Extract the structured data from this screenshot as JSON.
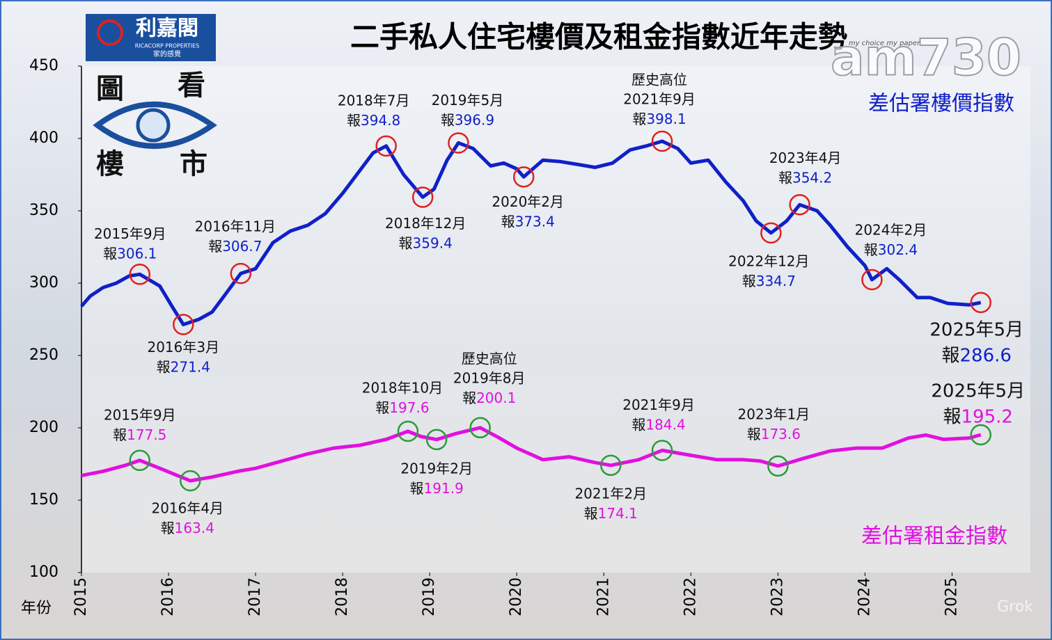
{
  "chart_data": {
    "type": "line",
    "title": "二手私人住宅樓價及租金指數近年走勢",
    "x_label": "年份",
    "xlim": [
      2015,
      2025.9
    ],
    "xticks": [
      2015,
      2016,
      2017,
      2018,
      2019,
      2020,
      2021,
      2022,
      2023,
      2024,
      2025
    ],
    "ylim": [
      100,
      450
    ],
    "yticks": [
      100,
      150,
      200,
      250,
      300,
      350,
      400,
      450
    ],
    "series": [
      {
        "name": "差估署樓價指數",
        "color": "#1020c8",
        "marker_color": "#e02020",
        "x": [
          2015.0,
          2015.1,
          2015.25,
          2015.4,
          2015.55,
          2015.67,
          2015.9,
          2016.05,
          2016.17,
          2016.35,
          2016.5,
          2016.65,
          2016.83,
          2017.0,
          2017.2,
          2017.4,
          2017.6,
          2017.8,
          2018.0,
          2018.2,
          2018.35,
          2018.5,
          2018.7,
          2018.92,
          2019.05,
          2019.2,
          2019.33,
          2019.5,
          2019.7,
          2019.85,
          2020.0,
          2020.08,
          2020.3,
          2020.5,
          2020.7,
          2020.9,
          2021.1,
          2021.3,
          2021.5,
          2021.67,
          2021.85,
          2022.0,
          2022.2,
          2022.4,
          2022.6,
          2022.75,
          2022.92,
          2023.1,
          2023.25,
          2023.45,
          2023.6,
          2023.8,
          2024.0,
          2024.08,
          2024.25,
          2024.4,
          2024.6,
          2024.75,
          2024.95,
          2025.2,
          2025.33
        ],
        "values": [
          284,
          291,
          297,
          300,
          305,
          306.1,
          298,
          283,
          271.4,
          275,
          280,
          292,
          306.7,
          310,
          328,
          336,
          340,
          348,
          362,
          378,
          390,
          394.8,
          375,
          359.4,
          365,
          385,
          396.9,
          393,
          381,
          383,
          379,
          373.4,
          385,
          384,
          382,
          380,
          383,
          392,
          395,
          398.1,
          393,
          383,
          385,
          370,
          357,
          343,
          334.7,
          343,
          354.2,
          350,
          340,
          325,
          312,
          302.4,
          310,
          302,
          290,
          290,
          286,
          285,
          286.6
        ],
        "annotations": [
          {
            "x": 2015.67,
            "date": "2015年9月",
            "prefix": "報",
            "value": 306.1
          },
          {
            "x": 2016.17,
            "date": "2016年3月",
            "prefix": "報",
            "value": 271.4
          },
          {
            "x": 2016.83,
            "date": "2016年11月",
            "prefix": "報",
            "value": 306.7
          },
          {
            "x": 2018.5,
            "date": "2018年7月",
            "prefix": "報",
            "value": 394.8
          },
          {
            "x": 2018.92,
            "date": "2018年12月",
            "prefix": "報",
            "value": 359.4
          },
          {
            "x": 2019.33,
            "date": "2019年5月",
            "prefix": "報",
            "value": 396.9
          },
          {
            "x": 2020.08,
            "date": "2020年2月",
            "prefix": "報",
            "value": 373.4
          },
          {
            "x": 2021.67,
            "note": "歷史高位",
            "date": "2021年9月",
            "prefix": "報",
            "value": 398.1
          },
          {
            "x": 2022.92,
            "date": "2022年12月",
            "prefix": "報",
            "value": 334.7
          },
          {
            "x": 2023.25,
            "date": "2023年4月",
            "prefix": "報",
            "value": 354.2
          },
          {
            "x": 2024.08,
            "date": "2024年2月",
            "prefix": "報",
            "value": 302.4
          },
          {
            "x": 2025.33,
            "date": "2025年5月",
            "prefix": "報",
            "value": 286.6
          }
        ]
      },
      {
        "name": "差估署租金指數",
        "color": "#e010e0",
        "marker_color": "#2a9a3a",
        "x": [
          2015.0,
          2015.25,
          2015.5,
          2015.67,
          2015.9,
          2016.25,
          2016.5,
          2016.8,
          2017.0,
          2017.3,
          2017.6,
          2017.9,
          2018.2,
          2018.5,
          2018.75,
          2018.9,
          2019.08,
          2019.3,
          2019.58,
          2019.8,
          2020.0,
          2020.3,
          2020.6,
          2020.9,
          2021.08,
          2021.4,
          2021.67,
          2022.0,
          2022.3,
          2022.6,
          2022.8,
          2023.0,
          2023.3,
          2023.6,
          2023.9,
          2024.2,
          2024.5,
          2024.7,
          2024.9,
          2025.2,
          2025.33
        ],
        "values": [
          167,
          170,
          174,
          177.5,
          172,
          163.4,
          166,
          170,
          172,
          177,
          182,
          186,
          188,
          192,
          197.6,
          194,
          191.9,
          196,
          200.1,
          193,
          186,
          178,
          180,
          176,
          174.1,
          178,
          184.4,
          181,
          178,
          178,
          177,
          173.6,
          179,
          184,
          186,
          186,
          193,
          195,
          192,
          193,
          195.2
        ],
        "annotations": [
          {
            "x": 2015.67,
            "date": "2015年9月",
            "prefix": "報",
            "value": 177.5
          },
          {
            "x": 2016.25,
            "date": "2016年4月",
            "prefix": "報",
            "value": 163.4
          },
          {
            "x": 2018.75,
            "date": "2018年10月",
            "prefix": "報",
            "value": 197.6
          },
          {
            "x": 2019.08,
            "date": "2019年2月",
            "prefix": "報",
            "value": 191.9
          },
          {
            "x": 2019.58,
            "note": "歷史高位",
            "date": "2019年8月",
            "prefix": "報",
            "value": 200.1
          },
          {
            "x": 2021.08,
            "date": "2021年2月",
            "prefix": "報",
            "value": 174.1
          },
          {
            "x": 2021.67,
            "date": "2021年9月",
            "prefix": "報",
            "value": 184.4
          },
          {
            "x": 2023.0,
            "date": "2023年1月",
            "prefix": "報",
            "value": 173.6
          },
          {
            "x": 2025.33,
            "date": "2025年5月",
            "prefix": "報",
            "value": 195.2
          }
        ]
      }
    ]
  },
  "branding": {
    "company": "利嘉閣",
    "company_en": "RICACORP PROPERTIES",
    "slogan": "家的感覺",
    "badge": [
      "圖",
      "看",
      "樓",
      "市"
    ],
    "watermark": "am730",
    "watermark_tagline": "my choice my paper",
    "ai_mark": "Grok"
  }
}
